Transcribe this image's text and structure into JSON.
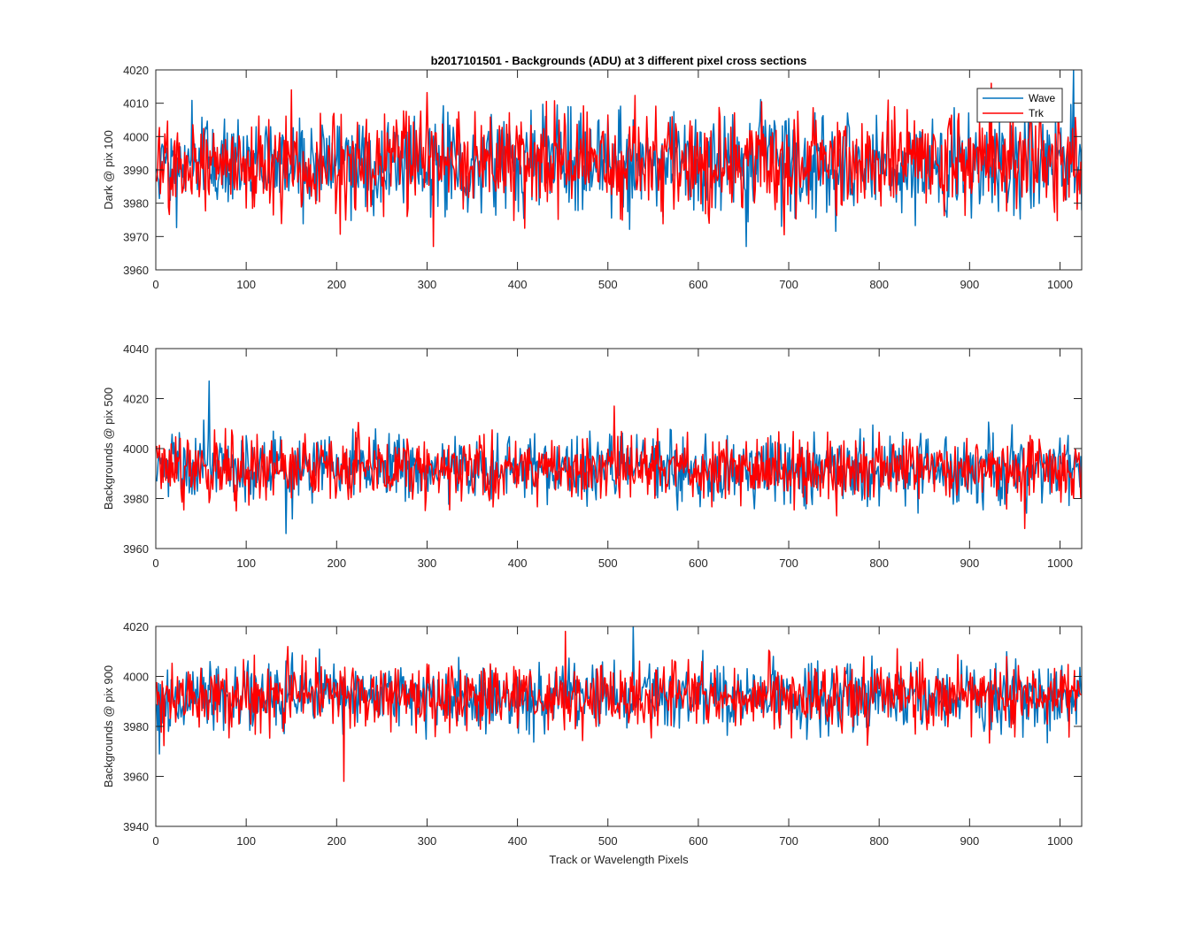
{
  "figure": {
    "title": "b2017101501 - Backgrounds (ADU) at 3 different pixel cross sections",
    "xlabel": "Track or Wavelength Pixels"
  },
  "colors": {
    "wave": "#0072BD",
    "trk": "#FF0000",
    "axes": "#262626",
    "background": "#ffffff"
  },
  "chart_data": [
    {
      "type": "line",
      "title": "b2017101501 - Backgrounds (ADU) at 3 different pixel cross sections",
      "ylabel": "Dark @ pix 100",
      "xlabel": "",
      "xlim": [
        0,
        1024
      ],
      "ylim": [
        3960,
        4020
      ],
      "xticks": [
        0,
        100,
        200,
        300,
        400,
        500,
        600,
        700,
        800,
        900,
        1000
      ],
      "yticks": [
        3960,
        3970,
        3980,
        3990,
        4000,
        4010,
        4020
      ],
      "legend": {
        "placement": "top-right",
        "entries": [
          "Wave",
          "Trk"
        ]
      },
      "grid": false,
      "series": [
        {
          "name": "Wave",
          "n_points": 1024,
          "mean": 3992,
          "std": 7.5,
          "min": 3967,
          "max": 4020
        },
        {
          "name": "Trk",
          "n_points": 1024,
          "mean": 3992,
          "std": 7.5,
          "min": 3967,
          "max": 4016
        }
      ]
    },
    {
      "type": "line",
      "ylabel": "Backgrounds @ pix 500",
      "xlabel": "",
      "xlim": [
        0,
        1024
      ],
      "ylim": [
        3960,
        4040
      ],
      "xticks": [
        0,
        100,
        200,
        300,
        400,
        500,
        600,
        700,
        800,
        900,
        1000
      ],
      "yticks": [
        3960,
        3980,
        4000,
        4020,
        4040
      ],
      "grid": false,
      "series": [
        {
          "name": "Wave",
          "n_points": 1024,
          "mean": 3992,
          "std": 6.5,
          "min": 3966,
          "max": 4027
        },
        {
          "name": "Trk",
          "n_points": 1024,
          "mean": 3992,
          "std": 6.5,
          "min": 3968,
          "max": 4017
        }
      ]
    },
    {
      "type": "line",
      "ylabel": "Backgrounds @ pix 900",
      "xlabel": "Track or Wavelength Pixels",
      "xlim": [
        0,
        1024
      ],
      "ylim": [
        3940,
        4020
      ],
      "xticks": [
        0,
        100,
        200,
        300,
        400,
        500,
        600,
        700,
        800,
        900,
        1000
      ],
      "yticks": [
        3940,
        3960,
        3980,
        4000,
        4020
      ],
      "grid": false,
      "series": [
        {
          "name": "Wave",
          "n_points": 1024,
          "mean": 3992,
          "std": 6.5,
          "min": 3969,
          "max": 4020
        },
        {
          "name": "Trk",
          "n_points": 1024,
          "mean": 3992,
          "std": 6.5,
          "min": 3958,
          "max": 4018
        }
      ]
    }
  ]
}
